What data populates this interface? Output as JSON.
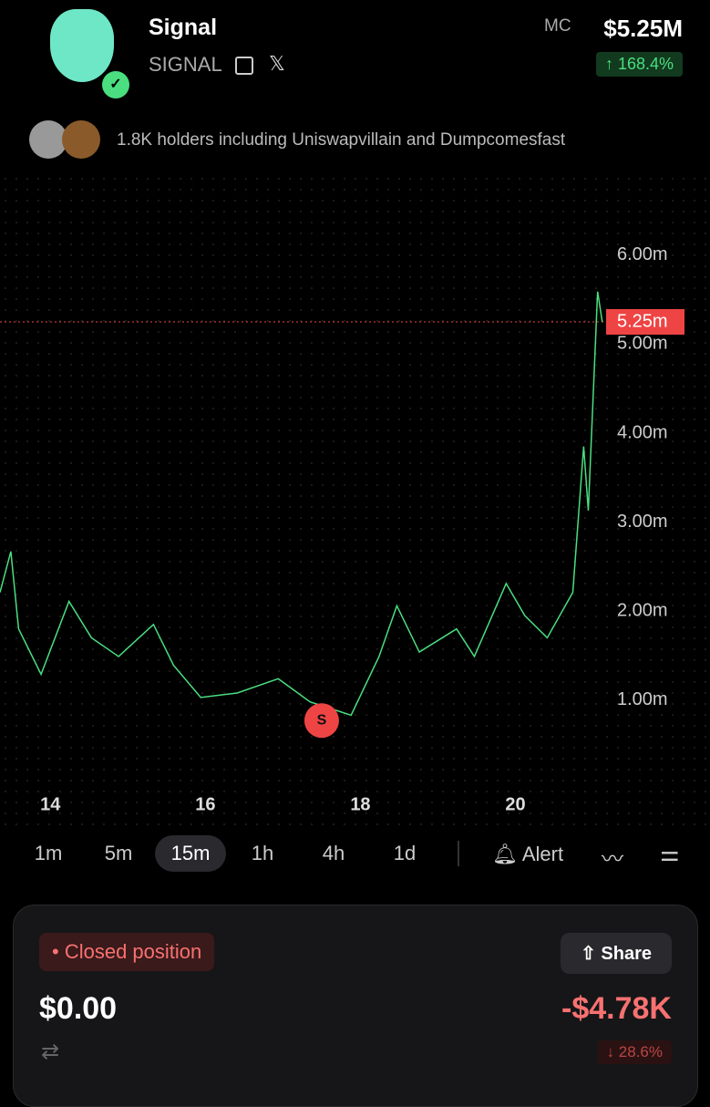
{
  "header": {
    "name": "Signal",
    "ticker": "SIGNAL",
    "mc_label": "MC",
    "mc_value": "$5.25M",
    "change": "↑ 168.4%"
  },
  "holders": "1.8K holders including Uniswapvillain and Dumpcomesfast",
  "chart_data": {
    "type": "line",
    "x": [
      13.35,
      13.49,
      13.59,
      13.88,
      14.24,
      14.53,
      14.88,
      15.33,
      15.59,
      15.94,
      16.41,
      16.94,
      17.35,
      17.88,
      18.24,
      18.47,
      18.76,
      19.24,
      19.47,
      19.88,
      20.12,
      20.41,
      20.74,
      20.88,
      20.94,
      21.06,
      21.12
    ],
    "values": [
      2.21,
      2.67,
      1.8,
      1.29,
      2.11,
      1.7,
      1.49,
      1.85,
      1.39,
      1.03,
      1.08,
      1.24,
      0.98,
      0.83,
      1.49,
      2.06,
      1.54,
      1.8,
      1.49,
      2.31,
      1.95,
      1.7,
      2.21,
      3.85,
      3.13,
      5.59,
      5.25
    ],
    "color": "#4ade80",
    "xlim": [
      13.35,
      22.51
    ],
    "ylim": [
      -0.15,
      6.92
    ],
    "xticks": [
      14,
      16,
      18,
      20
    ],
    "yticks": [
      {
        "value": 1,
        "label": "1.00m"
      },
      {
        "value": 2,
        "label": "2.00m"
      },
      {
        "value": 3,
        "label": "3.00m"
      },
      {
        "value": 4,
        "label": "4.00m"
      },
      {
        "value": 5,
        "label": "5.00m"
      },
      {
        "value": 6,
        "label": "6.00m"
      }
    ],
    "current": {
      "value": 5.25,
      "label": "5.25m"
    },
    "marker": {
      "x": 17.5,
      "value": 0.77,
      "label": "S"
    }
  },
  "timeframes": [
    "1m",
    "5m",
    "15m",
    "1h",
    "4h",
    "1d"
  ],
  "selected_timeframe_index": 2,
  "alert": "Alert",
  "position": {
    "status": "Closed position",
    "share": "Share",
    "value": "$0.00",
    "pnl": "-$4.78K",
    "pnl_change": "↓ 28.6%"
  }
}
